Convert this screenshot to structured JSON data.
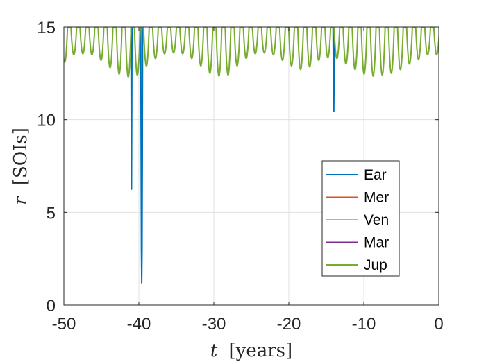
{
  "chart_data": {
    "type": "line",
    "title": "",
    "xlabel": {
      "symbol": "t",
      "unit": "[years]"
    },
    "ylabel": {
      "symbol": "r",
      "unit": "[SOIs]"
    },
    "xlim": [
      -50,
      0
    ],
    "ylim": [
      0,
      15
    ],
    "xticks": [
      -50,
      -40,
      -30,
      -20,
      -10,
      0
    ],
    "yticks": [
      0,
      5,
      10,
      15
    ],
    "xtick_labels": [
      "-50",
      "-40",
      "-30",
      "-20",
      "-10",
      "0"
    ],
    "ytick_labels": [
      "0",
      "5",
      "10",
      "15"
    ],
    "grid": true,
    "box": true,
    "legend_position": "center-right",
    "series": [
      {
        "name": "Ear",
        "color": "#0072BD",
        "segments": [
          [
            [
              -41.05,
              15
            ],
            [
              -41.02,
              10
            ],
            [
              -40.98,
              6.25
            ],
            [
              -40.95,
              10
            ],
            [
              -40.92,
              15
            ]
          ],
          [
            [
              -39.75,
              15
            ],
            [
              -39.7,
              8
            ],
            [
              -39.66,
              3
            ],
            [
              -39.62,
              1.2
            ],
            [
              -39.58,
              3
            ],
            [
              -39.54,
              8
            ],
            [
              -39.5,
              15
            ]
          ],
          [
            [
              -14.1,
              15
            ],
            [
              -14.06,
              12.5
            ],
            [
              -14.0,
              10.45
            ],
            [
              -13.96,
              12.5
            ],
            [
              -13.92,
              15
            ]
          ]
        ]
      },
      {
        "name": "Mer",
        "color": "#D95319",
        "segments": []
      },
      {
        "name": "Ven",
        "color": "#EDB120",
        "segments": []
      },
      {
        "name": "Mar",
        "color": "#7E2F8E",
        "segments": []
      },
      {
        "name": "Jup",
        "color": "#77AC30",
        "dip_times": [
          -49.89,
          -48.68,
          -47.47,
          -46.26,
          -45.05,
          -43.84,
          -42.63,
          -41.42,
          -40.21,
          -39.0,
          -37.79,
          -36.58,
          -35.37,
          -34.16,
          -32.95,
          -31.74,
          -30.53,
          -29.32,
          -28.11,
          -26.9,
          -25.69,
          -24.48,
          -23.27,
          -22.06,
          -20.85,
          -19.64,
          -18.43,
          -17.22,
          -16.01,
          -14.8,
          -13.59,
          -12.38,
          -11.17,
          -9.96,
          -8.75,
          -7.54,
          -6.33,
          -5.12,
          -3.91,
          -2.7,
          -1.49,
          -0.28
        ],
        "dip_minima": [
          13.1,
          13.5,
          13.55,
          13.5,
          13.2,
          12.8,
          12.45,
          12.3,
          12.4,
          12.9,
          13.3,
          13.55,
          13.6,
          13.55,
          13.3,
          12.9,
          12.5,
          12.35,
          12.4,
          12.9,
          13.3,
          13.55,
          13.6,
          13.5,
          13.2,
          12.9,
          12.7,
          12.85,
          13.2,
          13.35,
          13.3,
          13.0,
          12.7,
          12.45,
          12.35,
          12.4,
          12.5,
          12.7,
          13.0,
          13.25,
          13.5,
          13.5
        ],
        "dip_halfwidth": 0.38,
        "max_value": 15
      }
    ]
  }
}
